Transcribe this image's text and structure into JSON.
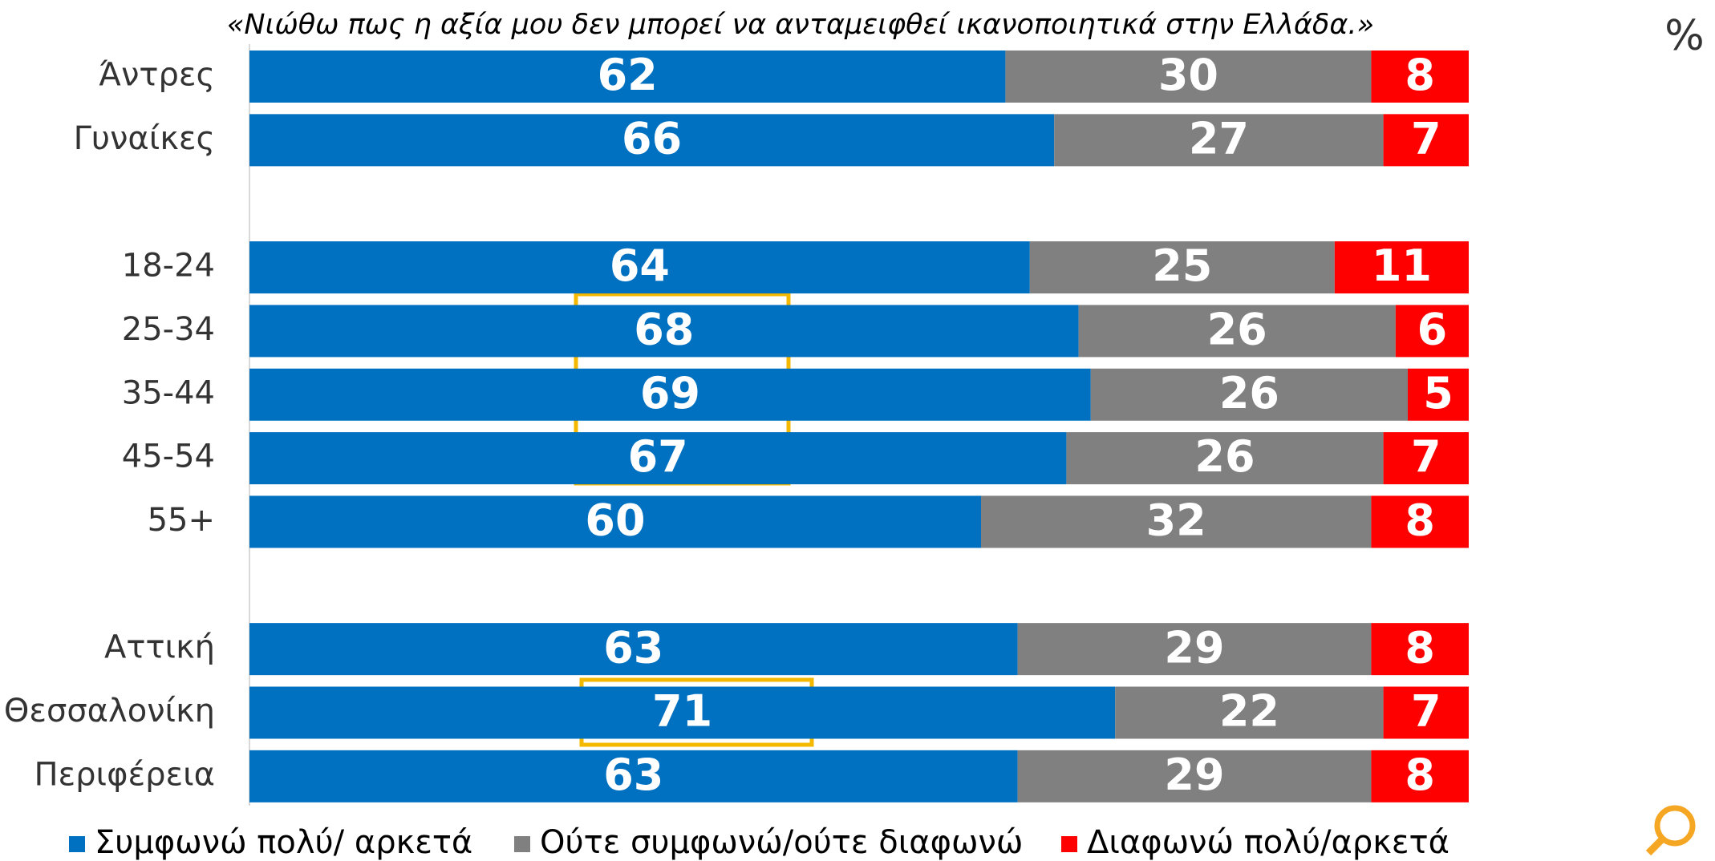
{
  "chart_data": {
    "type": "stacked_bar_horizontal",
    "title": "«Νιώθω πως η αξία μου δεν μπορεί να ανταμειφθεί ικανοποιητικά στην Ελλάδα.»",
    "unit_label": "%",
    "categories": [
      "Άντρες",
      "Γυναίκες",
      null,
      "18-24",
      "25-34",
      "35-44",
      "45-54",
      "55+",
      null,
      "Αττική",
      "Θεσσαλονίκη",
      "Περιφέρεια"
    ],
    "series": [
      {
        "name": "Συμφωνώ πολύ/ αρκετά",
        "color": "#0070c0",
        "values": [
          62,
          66,
          null,
          64,
          68,
          69,
          67,
          60,
          null,
          63,
          71,
          63
        ]
      },
      {
        "name": "Ούτε συμφωνώ/ούτε διαφωνώ",
        "color": "#808080",
        "values": [
          30,
          27,
          null,
          25,
          26,
          26,
          26,
          32,
          null,
          29,
          22,
          29
        ]
      },
      {
        "name": "Διαφωνώ πολύ/αρκετά",
        "color": "#ff0000",
        "values": [
          8,
          7,
          null,
          11,
          6,
          5,
          7,
          8,
          null,
          8,
          7,
          8
        ]
      }
    ],
    "xlim": [
      0,
      100
    ],
    "legend": "bottom"
  }
}
